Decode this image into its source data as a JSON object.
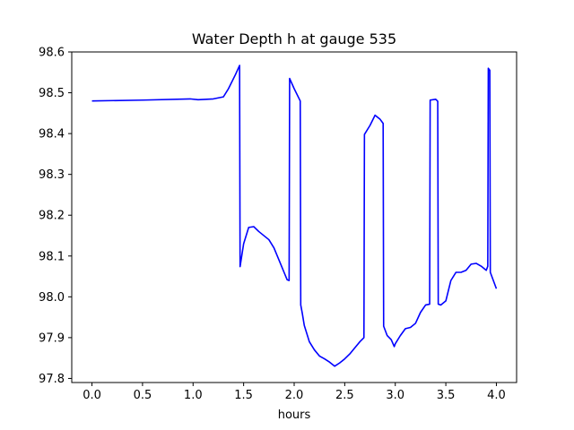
{
  "chart_data": {
    "type": "line",
    "title": "Water Depth h at gauge 535",
    "xlabel": "hours",
    "ylabel": "",
    "xlim": [
      -0.2,
      4.2
    ],
    "ylim": [
      97.79,
      98.6
    ],
    "x_ticks": [
      0.0,
      0.5,
      1.0,
      1.5,
      2.0,
      2.5,
      3.0,
      3.5,
      4.0
    ],
    "x_tick_labels": [
      "0.0",
      "0.5",
      "1.0",
      "1.5",
      "2.0",
      "2.5",
      "3.0",
      "3.5",
      "4.0"
    ],
    "y_ticks": [
      97.8,
      97.9,
      98.0,
      98.1,
      98.2,
      98.3,
      98.4,
      98.5,
      98.6
    ],
    "y_tick_labels": [
      "97.8",
      "97.9",
      "98.0",
      "98.1",
      "98.2",
      "98.3",
      "98.4",
      "98.5",
      "98.6"
    ],
    "grid": false,
    "series": [
      {
        "color": "#0000ff",
        "x": [
          0.0,
          0.5,
          0.97,
          1.05,
          1.2,
          1.3,
          1.35,
          1.42,
          1.46,
          1.465,
          1.5,
          1.55,
          1.6,
          1.65,
          1.75,
          1.8,
          1.85,
          1.9,
          1.93,
          1.95,
          1.955,
          2.0,
          2.06,
          2.065,
          2.08,
          2.1,
          2.15,
          2.2,
          2.25,
          2.3,
          2.35,
          2.4,
          2.45,
          2.5,
          2.55,
          2.6,
          2.65,
          2.69,
          2.695,
          2.75,
          2.8,
          2.85,
          2.88,
          2.885,
          2.92,
          2.96,
          2.99,
          3.0,
          3.05,
          3.1,
          3.15,
          3.2,
          3.25,
          3.3,
          3.34,
          3.345,
          3.4,
          3.42,
          3.425,
          3.45,
          3.5,
          3.55,
          3.6,
          3.65,
          3.7,
          3.75,
          3.8,
          3.85,
          3.9,
          3.915,
          3.92,
          3.935,
          3.94,
          4.0
        ],
        "y": [
          98.48,
          98.482,
          98.485,
          98.483,
          98.485,
          98.49,
          98.51,
          98.545,
          98.567,
          98.074,
          98.13,
          98.17,
          98.172,
          98.16,
          98.14,
          98.12,
          98.09,
          98.06,
          98.042,
          98.04,
          98.535,
          98.51,
          98.48,
          97.98,
          97.96,
          97.93,
          97.89,
          97.87,
          97.855,
          97.848,
          97.84,
          97.83,
          97.838,
          97.848,
          97.86,
          97.875,
          97.89,
          97.9,
          98.398,
          98.42,
          98.445,
          98.435,
          98.425,
          97.928,
          97.905,
          97.895,
          97.878,
          97.885,
          97.905,
          97.922,
          97.925,
          97.935,
          97.962,
          97.98,
          97.982,
          98.482,
          98.484,
          98.479,
          97.982,
          97.98,
          97.99,
          98.04,
          98.06,
          98.06,
          98.065,
          98.08,
          98.082,
          98.075,
          98.065,
          98.075,
          98.56,
          98.555,
          98.06,
          98.02
        ]
      }
    ]
  }
}
